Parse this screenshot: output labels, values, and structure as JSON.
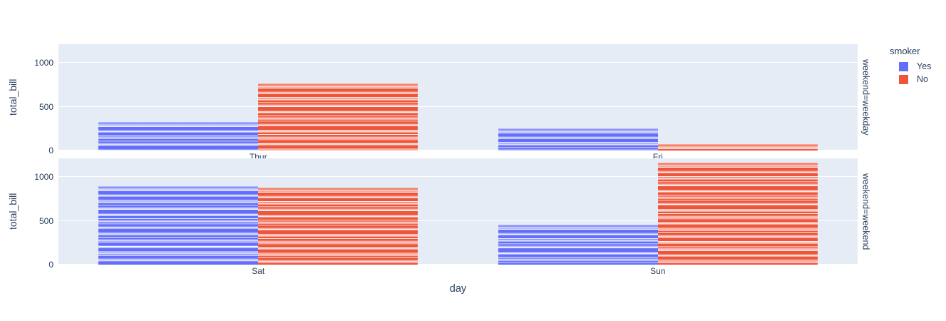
{
  "colors": {
    "background": "#ffffff",
    "panel_bg": "#e5ecf6",
    "grid": "#ffffff",
    "text": "#2a3f5f",
    "yes": "#636efa",
    "no": "#ef553b"
  },
  "legend": {
    "title": "smoker",
    "items": [
      {
        "label": "Yes",
        "color": "#636efa"
      },
      {
        "label": "No",
        "color": "#ef553b"
      }
    ]
  },
  "axes": {
    "x_title": "day",
    "y_title": "total_bill",
    "y_ticks": [
      "0",
      "500",
      "1000"
    ]
  },
  "chart_data": {
    "type": "bar",
    "barmode": "group",
    "segmented_bars": true,
    "title": "",
    "xlabel": "day",
    "ylabel": "total_bill",
    "legend_title": "smoker",
    "ylim": [
      0,
      1215
    ],
    "y_ticks": [
      0,
      500,
      1000
    ],
    "grid": true,
    "legend_position": "top-right-outside",
    "facets": [
      {
        "label": "weekend=weekday",
        "categories": [
          "Thur",
          "Fri"
        ],
        "series": [
          {
            "name": "Yes",
            "color": "#636efa",
            "values": [
              326.24,
              252.2
            ]
          },
          {
            "name": "No",
            "color": "#ef553b",
            "values": [
              770.09,
              73.68
            ]
          }
        ]
      },
      {
        "label": "weekend=weekend",
        "categories": [
          "Sat",
          "Sun"
        ],
        "series": [
          {
            "name": "Yes",
            "color": "#636efa",
            "values": [
              893.62,
              458.28
            ]
          },
          {
            "name": "No",
            "color": "#ef553b",
            "values": [
              884.78,
              1168.88
            ]
          }
        ]
      }
    ]
  }
}
